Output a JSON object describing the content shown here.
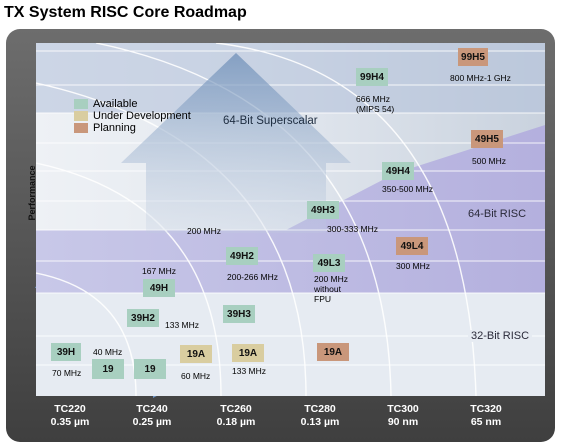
{
  "title": "TX System RISC Core Roadmap",
  "y_axis_label": "Performance",
  "legend": [
    {
      "label": "Available",
      "color": "#a8cfc0"
    },
    {
      "label": "Under Development",
      "color": "#d9cda0"
    },
    {
      "label": "Planning",
      "color": "#c9977b"
    }
  ],
  "bands": {
    "superscalar": "64-Bit Superscalar",
    "risc64": "64-Bit RISC",
    "risc32": "32-Bit RISC"
  },
  "cores": {
    "c99H5": {
      "label": "99H5",
      "freq": "800 MHz-1 GHz",
      "status": "planning"
    },
    "c99H4": {
      "label": "99H4",
      "freq": "666 MHz\n(MIPS 54)",
      "status": "available"
    },
    "c49H5": {
      "label": "49H5",
      "freq": "500 MHz",
      "status": "planning"
    },
    "c49H4": {
      "label": "49H4",
      "freq": "350-500 MHz",
      "status": "available"
    },
    "c49H3": {
      "label": "49H3",
      "freq": "300-333 MHz",
      "status": "available"
    },
    "c49L4": {
      "label": "49L4",
      "freq": "300 MHz",
      "status": "planning"
    },
    "c49H2": {
      "label": "49H2",
      "freq": "200-266 MHz",
      "status": "available"
    },
    "c49L3": {
      "label": "49L3",
      "freq": "200 MHz\nwithout\nFPU",
      "status": "available"
    },
    "c49H": {
      "label": "49H",
      "freq": "167 MHz",
      "status": "available"
    },
    "c39H2": {
      "label": "39H2",
      "freq": "133 MHz",
      "status": "available"
    },
    "c39H3": {
      "label": "39H3",
      "status": "available"
    },
    "c39H": {
      "label": "39H",
      "freq": "70 MHz",
      "status": "available"
    },
    "c19a": {
      "label": "19",
      "freq": "40 MHz",
      "status": "available"
    },
    "c19b": {
      "label": "19",
      "status": "available"
    },
    "c19A1": {
      "label": "19A",
      "freq": "60 MHz",
      "status": "development"
    },
    "c19A2": {
      "label": "19A",
      "freq": "133 MHz",
      "status": "development"
    },
    "c19A3": {
      "label": "19A",
      "status": "planning"
    }
  },
  "freq_200": "200 MHz",
  "x_axis": [
    {
      "node": "TC220",
      "process": "0.35 µm"
    },
    {
      "node": "TC240",
      "process": "0.25 µm"
    },
    {
      "node": "TC260",
      "process": "0.18 µm"
    },
    {
      "node": "TC280",
      "process": "0.13 µm"
    },
    {
      "node": "TC300",
      "process": "90 nm"
    },
    {
      "node": "TC320",
      "process": "65 nm"
    }
  ]
}
